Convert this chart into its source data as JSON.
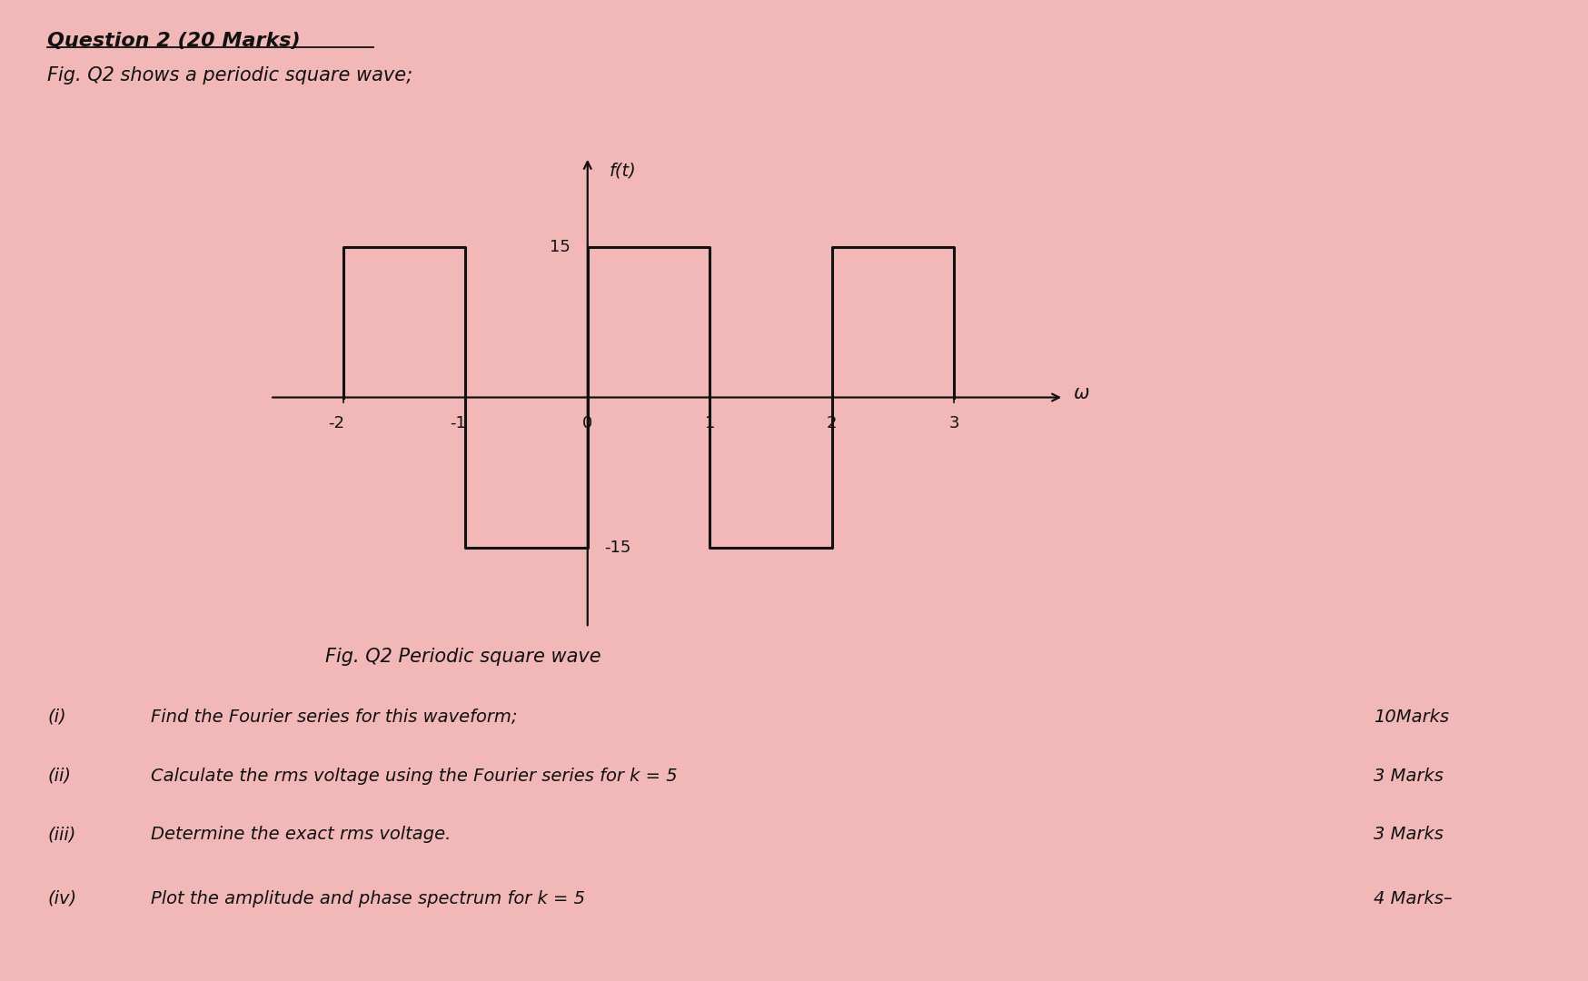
{
  "background_color": "#f2b8b8",
  "title_text": "Question 2 (20 Marks)",
  "subtitle_text": "Fig. Q2 shows a periodic square wave;",
  "fig_caption": "Fig. Q2 Periodic square wave",
  "ylabel": "f(t)",
  "xlabel": "ω",
  "amplitude": 15,
  "wave_x": [
    -2,
    -2,
    -1,
    -1,
    0,
    0,
    1,
    1,
    2,
    2,
    3,
    3
  ],
  "wave_y": [
    0,
    15,
    15,
    -15,
    -15,
    15,
    15,
    -15,
    -15,
    15,
    15,
    0
  ],
  "xticks": [
    -2,
    -1,
    0,
    1,
    2,
    3
  ],
  "xlim": [
    -2.6,
    3.9
  ],
  "ylim": [
    -23,
    24
  ],
  "items": [
    {
      "num": "(i)",
      "text": "Find the Fourier series for this waveform;",
      "marks": "10Marks"
    },
    {
      "num": "(ii)",
      "text": "Calculate the rms voltage using the Fourier series for k = 5",
      "marks": "3 Marks"
    },
    {
      "num": "(iii)",
      "text": "Determine the exact rms voltage.",
      "marks": "3 Marks"
    },
    {
      "num": "(iv)",
      "text": "Plot the amplitude and phase spectrum for k = 5",
      "marks": "4 Marks–"
    }
  ],
  "line_color": "#111111",
  "text_color": "#111111",
  "font_size_title": 16,
  "font_size_subtitle": 15,
  "font_size_body": 14,
  "font_size_tick": 13,
  "font_size_axis_label": 14
}
